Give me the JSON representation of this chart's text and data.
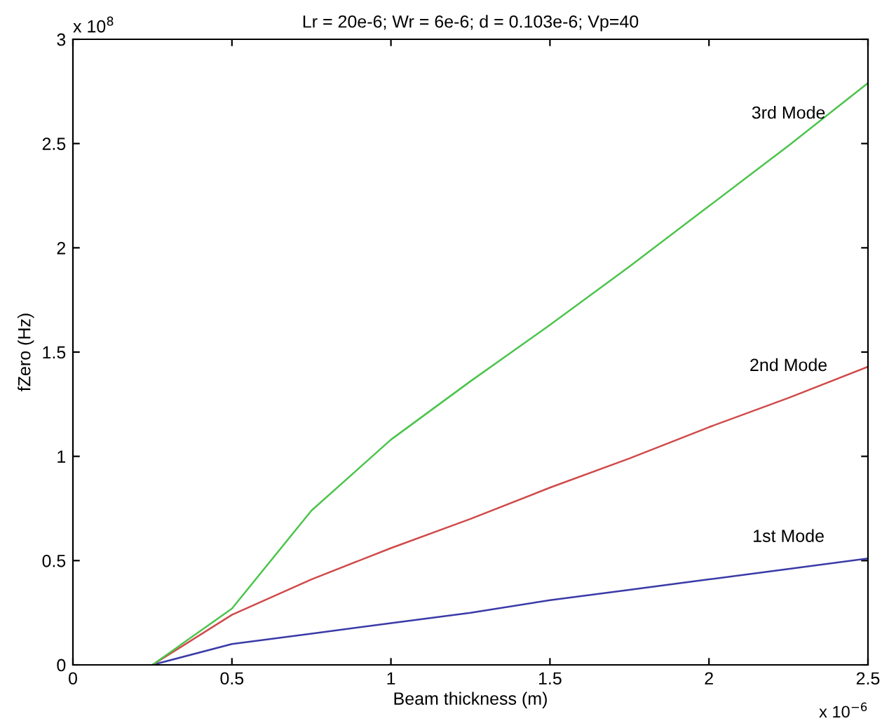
{
  "chart_data": {
    "type": "line",
    "title": "Lr = 20e-6; Wr = 6e-6; d = 0.103e-6; Vp=40",
    "xlabel": "Beam thickness (m)",
    "ylabel": "fZero (Hz)",
    "x": [
      0.25,
      0.5,
      0.75,
      1.0,
      1.25,
      1.5,
      1.75,
      2.0,
      2.25,
      2.5
    ],
    "series": [
      {
        "name": "1st Mode",
        "color": "#3a3aa8",
        "values": [
          0,
          0.1,
          0.15,
          0.2,
          0.25,
          0.31,
          0.36,
          0.41,
          0.46,
          0.51
        ]
      },
      {
        "name": "2nd Mode",
        "color": "#d04a4a",
        "values": [
          0,
          0.24,
          0.41,
          0.56,
          0.7,
          0.85,
          0.99,
          1.14,
          1.28,
          1.43
        ]
      },
      {
        "name": "3rd Mode",
        "color": "#4cc44c",
        "values": [
          0,
          0.27,
          0.74,
          1.08,
          1.36,
          1.63,
          1.91,
          2.2,
          2.49,
          2.79
        ]
      }
    ],
    "xlim": [
      0,
      2.5
    ],
    "xticks": [
      0,
      0.5,
      1,
      1.5,
      2,
      2.5
    ],
    "ylim": [
      0,
      3
    ],
    "yticks": [
      0,
      0.5,
      1,
      1.5,
      2,
      2.5,
      3
    ],
    "annotations": [
      "x 10$^{8}$",
      "x 10$^{−6}$"
    ],
    "grid": false,
    "legend": false,
    "marker": "none",
    "line_style": "solid"
  }
}
